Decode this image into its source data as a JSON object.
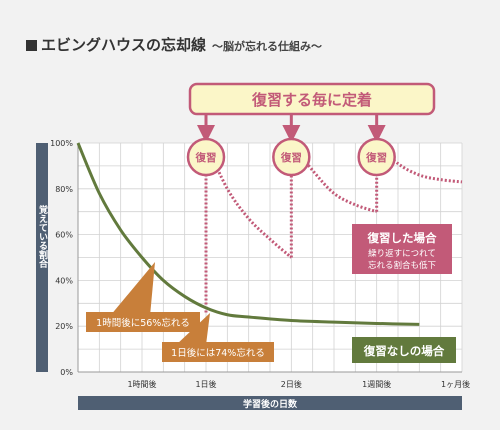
{
  "title": "エビングハウスの忘却線",
  "subtitle": "〜脳が忘れる仕組み〜",
  "colors": {
    "forgetting_curve": "#627a3d",
    "review_curve": "#c25a78",
    "callout_box": "#fbf6c8",
    "callout_border": "#c25a78",
    "axis_bar": "#4f5f73",
    "arrow_orange": "#c87f3a"
  },
  "chart_data": {
    "type": "line",
    "xlabel": "学習後の日数",
    "ylabel": "覚えている割合",
    "x_ticks": [
      "1時間後",
      "1日後",
      "2日後",
      "1週間後",
      "1ヶ月後"
    ],
    "y_ticks": [
      "0%",
      "20%",
      "40%",
      "60%",
      "80%",
      "100%"
    ],
    "ylim": [
      0,
      100
    ],
    "grid": true,
    "series": [
      {
        "name": "復習なしの場合",
        "points": [
          [
            0,
            100
          ],
          [
            0.5,
            78
          ],
          [
            1,
            62
          ],
          [
            1.5,
            50
          ],
          [
            2,
            40
          ],
          [
            2.5,
            33
          ],
          [
            3,
            28
          ],
          [
            3.5,
            25
          ],
          [
            4,
            24
          ],
          [
            5,
            22.5
          ],
          [
            6,
            21.8
          ],
          [
            7,
            21.2
          ],
          [
            8,
            20.8
          ]
        ]
      },
      {
        "name": "復習した場合",
        "segments": [
          [
            [
              3,
              26
            ],
            [
              3,
              100
            ],
            [
              3.5,
              80
            ],
            [
              4,
              67
            ],
            [
              4.5,
              58
            ],
            [
              5,
              50
            ]
          ],
          [
            [
              5,
              50
            ],
            [
              5,
              100
            ],
            [
              5.5,
              88
            ],
            [
              6,
              78
            ],
            [
              6.5,
              73
            ],
            [
              7,
              70
            ]
          ],
          [
            [
              7,
              70
            ],
            [
              7,
              100
            ],
            [
              7.5,
              91
            ],
            [
              8,
              86
            ],
            [
              8.5,
              84
            ],
            [
              9,
              83
            ]
          ]
        ]
      }
    ],
    "review_label": "復習",
    "callout_title": "復習する毎に定着",
    "annotations": {
      "review_title": "復習した場合",
      "review_desc": [
        "繰り返すにつれて",
        "忘れる割合も低下"
      ],
      "no_review": "復習なしの場合",
      "one_hour": "1時間後に56%忘れる",
      "one_day": "1日後には74%忘れる"
    }
  }
}
